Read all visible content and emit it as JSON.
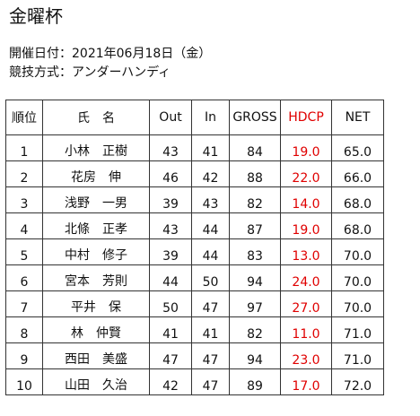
{
  "title": "金曜杯",
  "info": {
    "date_label": "開催日付：",
    "date_value": "2021年06月18日（金）",
    "format_label": "競技方式：",
    "format_value": "アンダーハンディ"
  },
  "table": {
    "headers": {
      "rank": "順位",
      "name": "氏　名",
      "out": "Out",
      "in": "In",
      "gross": "GROSS",
      "hdcp": "HDCP",
      "net": "NET"
    },
    "rows": [
      {
        "rank": "1",
        "name": "小林　正樹",
        "out": "43",
        "in": "41",
        "gross": "84",
        "hdcp": "19.0",
        "net": "65.0"
      },
      {
        "rank": "2",
        "name": "花房　伸",
        "out": "46",
        "in": "42",
        "gross": "88",
        "hdcp": "22.0",
        "net": "66.0"
      },
      {
        "rank": "3",
        "name": "浅野　一男",
        "out": "39",
        "in": "43",
        "gross": "82",
        "hdcp": "14.0",
        "net": "68.0"
      },
      {
        "rank": "4",
        "name": "北條　正孝",
        "out": "43",
        "in": "44",
        "gross": "87",
        "hdcp": "19.0",
        "net": "68.0"
      },
      {
        "rank": "5",
        "name": "中村　修子",
        "out": "39",
        "in": "44",
        "gross": "83",
        "hdcp": "13.0",
        "net": "70.0"
      },
      {
        "rank": "6",
        "name": "宮本　芳則",
        "out": "44",
        "in": "50",
        "gross": "94",
        "hdcp": "24.0",
        "net": "70.0"
      },
      {
        "rank": "7",
        "name": "平井　保",
        "out": "50",
        "in": "47",
        "gross": "97",
        "hdcp": "27.0",
        "net": "70.0"
      },
      {
        "rank": "8",
        "name": "林　仲賢",
        "out": "41",
        "in": "41",
        "gross": "82",
        "hdcp": "11.0",
        "net": "71.0"
      },
      {
        "rank": "9",
        "name": "西田　美盛",
        "out": "47",
        "in": "47",
        "gross": "94",
        "hdcp": "23.0",
        "net": "71.0"
      },
      {
        "rank": "10",
        "name": "山田　久治",
        "out": "42",
        "in": "47",
        "gross": "89",
        "hdcp": "17.0",
        "net": "72.0"
      }
    ]
  },
  "colors": {
    "hdcp": "#e00000",
    "text": "#111111",
    "border": "#333333"
  }
}
